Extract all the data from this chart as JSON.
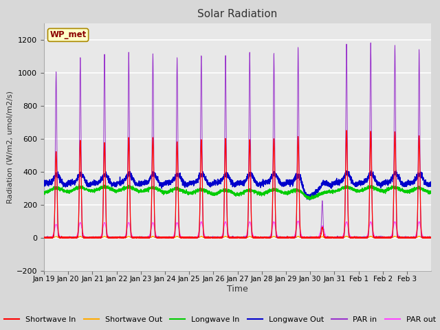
{
  "title": "Solar Radiation",
  "ylabel": "Radiation (W/m2, umol/m2/s)",
  "xlabel": "Time",
  "ylim": [
    -200,
    1300
  ],
  "yticks": [
    -200,
    0,
    200,
    400,
    600,
    800,
    1000,
    1200
  ],
  "n_days": 16,
  "day_labels": [
    "Jan 19",
    "Jan 20",
    "Jan 21",
    "Jan 22",
    "Jan 23",
    "Jan 24",
    "Jan 25",
    "Jan 26",
    "Jan 27",
    "Jan 28",
    "Jan 29",
    "Jan 30",
    "Jan 31",
    "Feb 1",
    "Feb 2",
    "Feb 3"
  ],
  "colors": {
    "shortwave_in": "#ff0000",
    "shortwave_out": "#ffaa00",
    "longwave_in": "#00cc00",
    "longwave_out": "#0000cc",
    "par_in": "#9933cc",
    "par_out": "#ff44ff"
  },
  "legend_labels": [
    "Shortwave In",
    "Shortwave Out",
    "Longwave In",
    "Longwave Out",
    "PAR in",
    "PAR out"
  ],
  "site_label": "WP_met",
  "fig_bg_color": "#d8d8d8",
  "plot_bg_color": "#e8e8e8",
  "grid_color": "#ffffff",
  "shortwave_in_peaks": [
    520,
    590,
    575,
    605,
    605,
    580,
    595,
    600,
    595,
    600,
    610,
    60,
    650,
    645,
    640,
    615
  ],
  "par_in_peaks": [
    1000,
    1090,
    1110,
    1120,
    1115,
    1090,
    1105,
    1105,
    1125,
    1120,
    1155,
    220,
    1175,
    1185,
    1165,
    1140
  ],
  "par_out_peaks": [
    80,
    90,
    90,
    90,
    90,
    90,
    95,
    95,
    95,
    95,
    100,
    70,
    95,
    95,
    95,
    95
  ],
  "shortwave_out_peaks": [
    6,
    7,
    7,
    7,
    7,
    7,
    7,
    7,
    7,
    7,
    7,
    5,
    8,
    8,
    8,
    8
  ],
  "longwave_in_base": 285,
  "longwave_out_base": 325,
  "lw_sigma": 0.06
}
